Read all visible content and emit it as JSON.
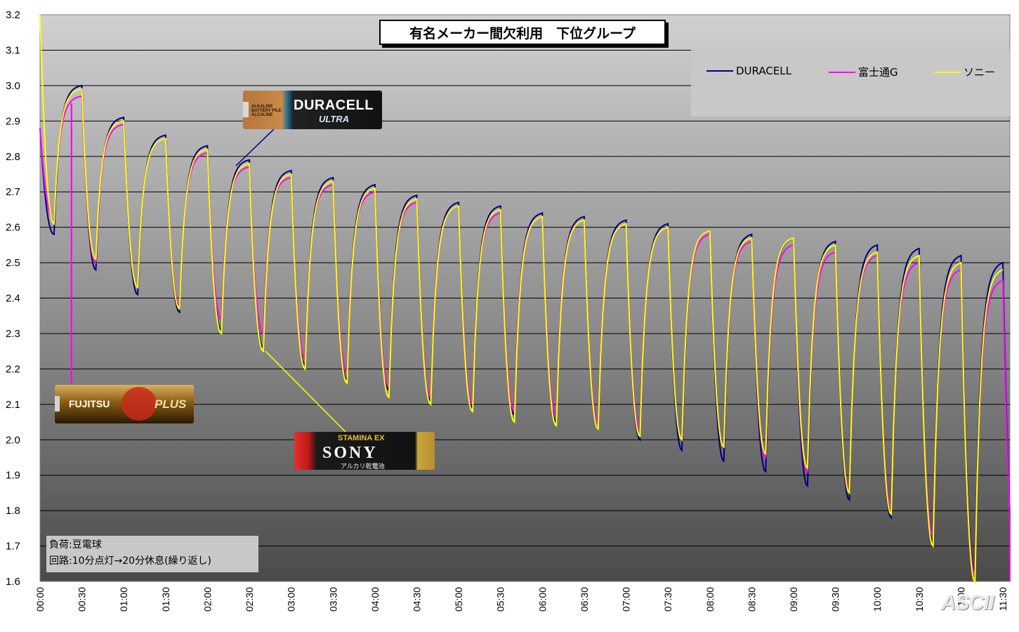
{
  "chart_data": {
    "type": "line",
    "title": "有名メーカー間欠利用　下位グループ",
    "ylim": [
      1.6,
      3.2
    ],
    "y_ticks": [
      "3.2",
      "3.1",
      "3.0",
      "2.9",
      "2.8",
      "2.7",
      "2.6",
      "2.5",
      "2.4",
      "2.3",
      "2.2",
      "2.1",
      "2.0",
      "1.9",
      "1.8",
      "1.7",
      "1.6"
    ],
    "x_ticks": [
      "00:00",
      "00:30",
      "01:00",
      "01:30",
      "02:00",
      "02:30",
      "03:00",
      "03:30",
      "04:00",
      "04:30",
      "05:00",
      "05:30",
      "06:00",
      "06:30",
      "07:00",
      "07:30",
      "08:00",
      "08:30",
      "09:00",
      "09:30",
      "10:00",
      "10:30",
      "11:00",
      "11:30"
    ],
    "x_range_min": [
      0,
      695
    ],
    "cycle_minutes": 30,
    "on_minutes": 10,
    "grid": true,
    "legend_position": "top-right",
    "series": [
      {
        "name": "DURACELL",
        "color": "#000080",
        "peaks": [
          3.0,
          2.91,
          2.86,
          2.83,
          2.79,
          2.76,
          2.74,
          2.72,
          2.69,
          2.67,
          2.66,
          2.64,
          2.63,
          2.62,
          2.61,
          2.59,
          2.58,
          2.57,
          2.56,
          2.55,
          2.54,
          2.52,
          2.5
        ],
        "troughs": [
          2.58,
          2.48,
          2.41,
          2.36,
          2.31,
          2.26,
          2.21,
          2.17,
          2.14,
          2.11,
          2.09,
          2.07,
          2.05,
          2.03,
          2.0,
          1.97,
          1.94,
          1.91,
          1.87,
          1.83,
          1.78,
          1.71,
          1.63,
          1.6
        ]
      },
      {
        "name": "富士通G",
        "color": "#ff00ff",
        "peaks": [
          2.97,
          2.89,
          2.85,
          2.81,
          2.77,
          2.74,
          2.72,
          2.7,
          2.67,
          2.66,
          2.64,
          2.63,
          2.62,
          2.61,
          2.6,
          2.58,
          2.56,
          2.55,
          2.53,
          2.52,
          2.5,
          2.48,
          2.45
        ],
        "troughs": [
          2.62,
          2.5,
          2.43,
          2.38,
          2.34,
          2.3,
          2.23,
          2.19,
          2.15,
          2.12,
          2.1,
          2.08,
          2.07,
          2.05,
          2.03,
          2.0,
          1.98,
          1.95,
          1.91,
          1.86,
          1.81,
          1.73,
          1.62,
          1.6
        ]
      },
      {
        "name": "ソニー",
        "color": "#ffff00",
        "peaks": [
          2.99,
          2.9,
          2.85,
          2.82,
          2.78,
          2.75,
          2.73,
          2.71,
          2.68,
          2.66,
          2.65,
          2.63,
          2.62,
          2.61,
          2.6,
          2.59,
          2.57,
          2.57,
          2.55,
          2.53,
          2.52,
          2.5,
          2.48
        ],
        "troughs": [
          2.61,
          2.51,
          2.43,
          2.37,
          2.3,
          2.25,
          2.2,
          2.16,
          2.12,
          2.1,
          2.08,
          2.05,
          2.04,
          2.03,
          2.01,
          2.0,
          1.98,
          1.96,
          1.92,
          1.85,
          1.79,
          1.7,
          1.6
        ]
      }
    ]
  },
  "legend": {
    "duracell": "DURACELL",
    "fujitsu": "富士通G",
    "sony": "ソニー"
  },
  "note": {
    "line1": "負荷:豆電球",
    "line2": "回路:10分点灯→20分休息(繰り返し)"
  },
  "batteries": {
    "duracell": {
      "brand": "DURACELL",
      "sub": "ULTRA",
      "small": "ALKALINE BATTERY PILE ALCALINE"
    },
    "fujitsu": {
      "brand": "FUJITSU",
      "plus": "PLUS"
    },
    "sony": {
      "stamina": "STAMINA EX",
      "brand": "SONY",
      "sub": "アルカリ乾電池"
    }
  },
  "watermark": "ASCII"
}
